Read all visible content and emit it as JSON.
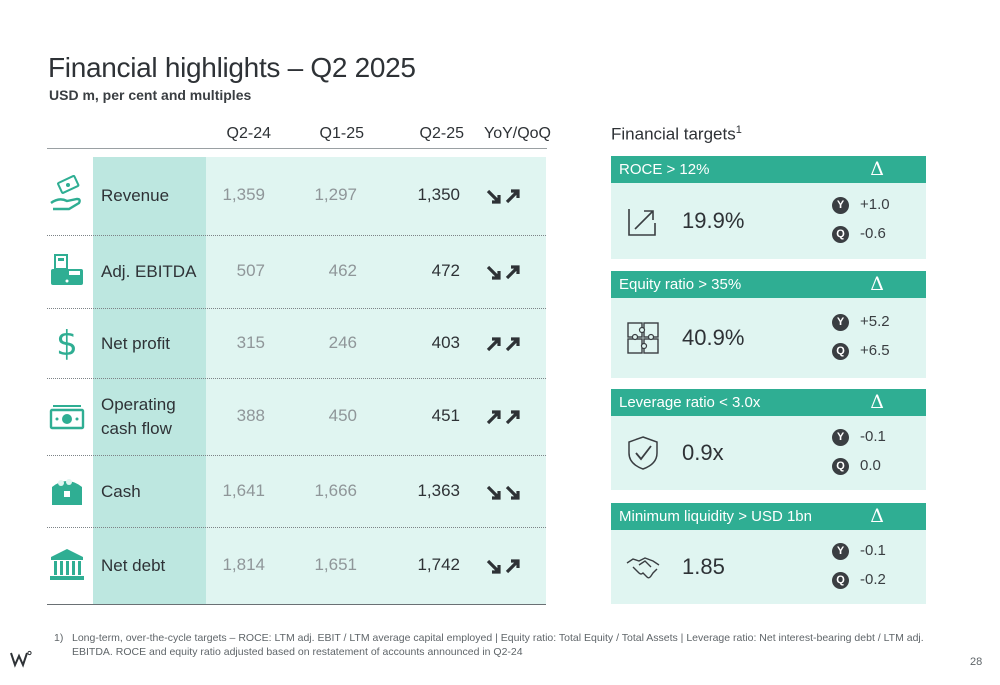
{
  "page": {
    "title": "Financial highlights – Q2 2025",
    "subtitle": "USD m, per cent and multiples",
    "page_number": "28"
  },
  "table": {
    "columns": [
      "Q2-24",
      "Q1-25",
      "Q2-25",
      "YoY/QoQ"
    ],
    "rows": [
      {
        "label": "Revenue",
        "icon": "money-hand-icon",
        "q2_24": "1,359",
        "q1_25": "1,297",
        "q2_25": "1,350",
        "yoy": "down",
        "qoq": "up"
      },
      {
        "label": "Adj. EBITDA",
        "icon": "cash-register-icon",
        "q2_24": "507",
        "q1_25": "462",
        "q2_25": "472",
        "yoy": "down",
        "qoq": "up"
      },
      {
        "label": "Net profit",
        "icon": "dollar-sign-icon",
        "q2_24": "315",
        "q1_25": "246",
        "q2_25": "403",
        "yoy": "up",
        "qoq": "up"
      },
      {
        "label": "Operating\ncash flow",
        "icon": "banknote-icon",
        "q2_24": "388",
        "q1_25": "450",
        "q2_25": "451",
        "yoy": "up",
        "qoq": "up"
      },
      {
        "label": "Cash",
        "icon": "treasure-chest-icon",
        "q2_24": "1,641",
        "q1_25": "1,666",
        "q2_25": "1,363",
        "yoy": "down",
        "qoq": "down"
      },
      {
        "label": "Net debt",
        "icon": "bank-building-icon",
        "q2_24": "1,814",
        "q1_25": "1,651",
        "q2_25": "1,742",
        "yoy": "down",
        "qoq": "up"
      }
    ]
  },
  "targets": {
    "title": "Financial targets",
    "title_sup": "1",
    "delta_symbol": "Δ",
    "y_badge": "Y",
    "q_badge": "Q",
    "items": [
      {
        "head": "ROCE > 12%",
        "value": "19.9%",
        "y": "+1.0",
        "q": "-0.6",
        "icon": "growth-arrow-icon"
      },
      {
        "head": "Equity ratio > 35%",
        "value": "40.9%",
        "y": "+5.2",
        "q": "+6.5",
        "icon": "puzzle-icon"
      },
      {
        "head": "Leverage ratio < 3.0x",
        "value": "0.9x",
        "y": "-0.1",
        "q": "0.0",
        "icon": "shield-check-icon"
      },
      {
        "head": "Minimum liquidity > USD 1bn",
        "value": "1.85",
        "y": "-0.1",
        "q": "-0.2",
        "icon": "handshake-icon"
      }
    ]
  },
  "footnote": {
    "number": "1)",
    "text": "Long-term, over-the-cycle targets – ROCE: LTM adj. EBIT / LTM average capital employed | Equity ratio: Total Equity / Total Assets | Leverage ratio: Net interest-bearing debt / LTM adj. EBITDA. ROCE and equity ratio adjusted based on restatement of accounts announced in Q2-24"
  },
  "colors": {
    "accent": "#2fae93",
    "label_bg": "#bde7e0",
    "value_bg": "#e0f5f1",
    "icon": "#2fae93",
    "dark": "#2e3236"
  }
}
